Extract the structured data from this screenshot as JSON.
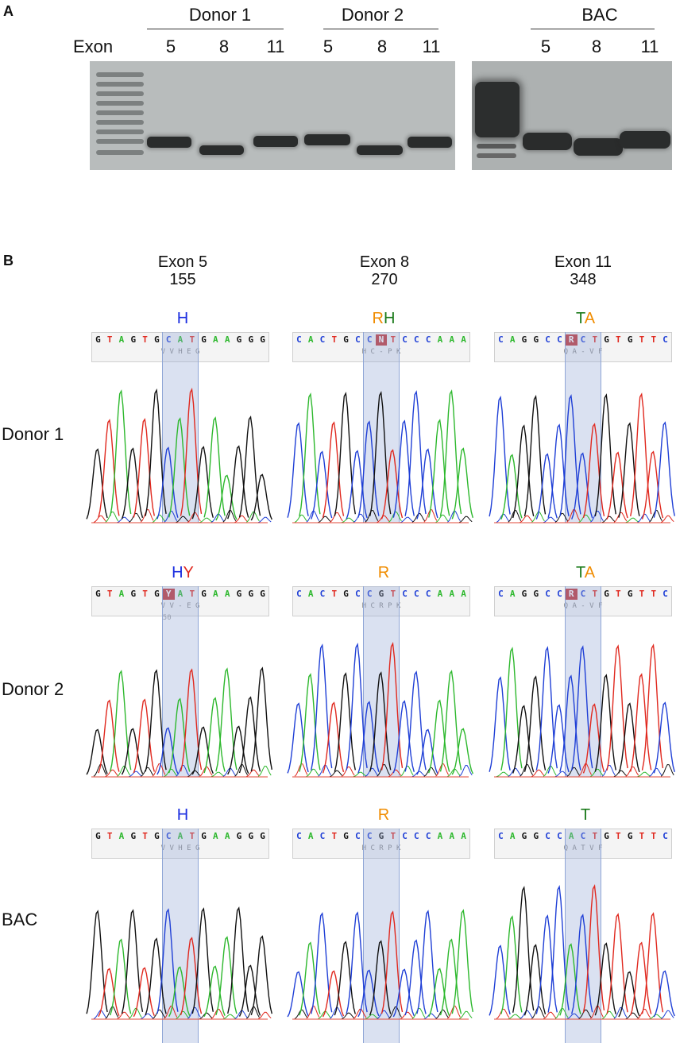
{
  "panel_a": {
    "letter": "A",
    "exon_label": "Exon",
    "groups": [
      {
        "name": "Donor 1",
        "exons": [
          "5",
          "8",
          "11"
        ]
      },
      {
        "name": "Donor 2",
        "exons": [
          "5",
          "8",
          "11"
        ]
      },
      {
        "name": "BAC",
        "exons": [
          "5",
          "8",
          "11"
        ]
      }
    ]
  },
  "panel_b": {
    "letter": "B",
    "columns": [
      {
        "title": "Exon 5",
        "position": "155"
      },
      {
        "title": "Exon 8",
        "position": "270"
      },
      {
        "title": "Exon 11",
        "position": "348"
      }
    ],
    "rows": [
      "Donor 1",
      "Donor 2",
      "BAC"
    ],
    "colors": {
      "A": "#2db82d",
      "C": "#1f3fd6",
      "G": "#111111",
      "T": "#e0281e",
      "N": "#c02020"
    },
    "cells": [
      [
        {
          "call": [
            [
              "H",
              "#1a2de0"
            ]
          ],
          "bases": "GTAGTGCATGAAGGG",
          "aa": "V  V  H  E  G"
        },
        {
          "call": [
            [
              "R",
              "#f08c00"
            ],
            [
              "H",
              "#1a7a1a"
            ]
          ],
          "bases": "CACTGCCNTCCCAAA",
          "aa": "H  C  -  P  K"
        },
        {
          "call": [
            [
              "T",
              "#1a7a1a"
            ],
            [
              "A",
              "#f08c00"
            ]
          ],
          "bases": "CAGGCCRCTGTGTTC",
          "aa": "Q  A  -  V  F"
        }
      ],
      [
        {
          "call": [
            [
              "H",
              "#1a2de0"
            ],
            [
              "Y",
              "#e0281e"
            ]
          ],
          "bases": "GTAGTGYATGAAGGG",
          "aa": "V  V  -  E  G",
          "extra": "50"
        },
        {
          "call": [
            [
              "R",
              "#f08c00"
            ]
          ],
          "bases": "CACTGCCGTCCCAAA",
          "aa": "H  C  R  P  K"
        },
        {
          "call": [
            [
              "T",
              "#1a7a1a"
            ],
            [
              "A",
              "#f08c00"
            ]
          ],
          "bases": "CAGGCCRCTGTGTTC",
          "aa": "Q  A  -  V  F"
        }
      ],
      [
        {
          "call": [
            [
              "H",
              "#1a2de0"
            ]
          ],
          "bases": "GTAGTGCATGAAGGG",
          "aa": "V  V  H  E  G"
        },
        {
          "call": [
            [
              "R",
              "#f08c00"
            ]
          ],
          "bases": "CACTGCCGTCCCAAA",
          "aa": "H  C  R  P  K"
        },
        {
          "call": [
            [
              "T",
              "#1a7a1a"
            ]
          ],
          "bases": "CAGGCCACTGTGTTC",
          "aa": "Q  A  T  V  F"
        }
      ]
    ]
  }
}
